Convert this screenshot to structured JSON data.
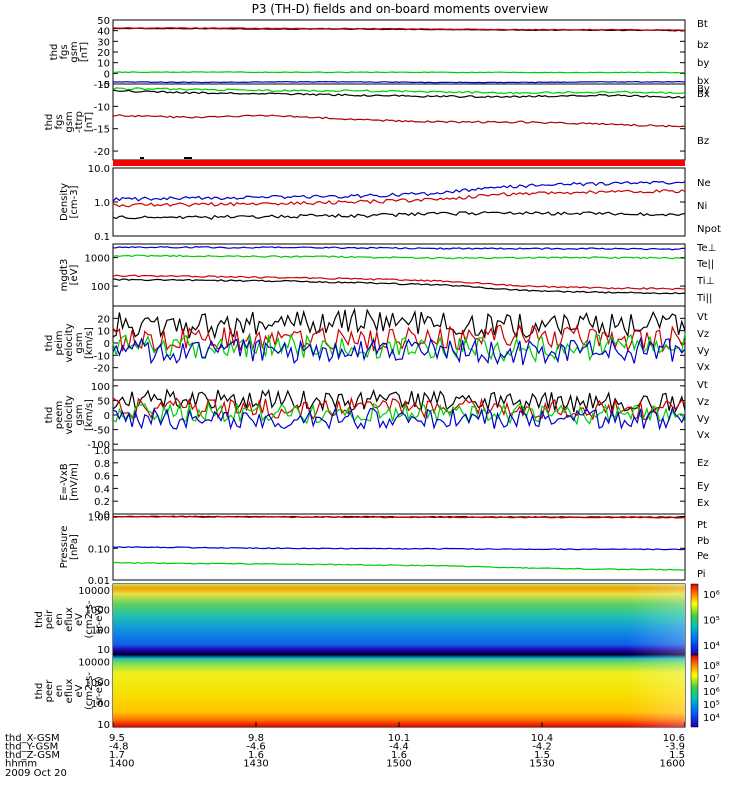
{
  "chart_data": {
    "type": "line",
    "title": "P3 (TH-D) fields and on-board moments overview",
    "panels": [
      {
        "id": "fgs-gsm-top",
        "ylabel": [
          "thd",
          "fgs",
          "gsm",
          "[nT]"
        ],
        "ylim": [
          -10,
          50
        ],
        "yticks": [
          -10,
          0,
          10,
          20,
          30,
          40,
          50
        ],
        "log": false,
        "series": [
          {
            "name": "Bt",
            "color": "#000000",
            "values": [
              42,
              42,
              41.5,
              41.5,
              41,
              40.5,
              40.5,
              40
            ]
          },
          {
            "name": "bz",
            "color": "#cc0000",
            "values": [
              42.5,
              42.5,
              42,
              42,
              41.5,
              41,
              41,
              40.5
            ]
          },
          {
            "name": "by",
            "color": "#00cc00",
            "values": [
              1,
              1.2,
              1,
              1,
              1,
              0.8,
              0.8,
              0.8
            ]
          },
          {
            "name": "bx",
            "color": "#0000cc",
            "values": [
              -8,
              -8.5,
              -8,
              -8,
              -8.5,
              -8.5,
              -8,
              -8
            ]
          }
        ]
      },
      {
        "id": "fgs-gsm-bottom",
        "ylabel": [
          "thd",
          "fgs",
          "gsm",
          "-ttrp",
          "[nT]"
        ],
        "ylim": [
          -22,
          -5
        ],
        "yticks": [
          -20,
          -15,
          -10,
          -5
        ],
        "log": false,
        "series": [
          {
            "name": "By",
            "color": "#00cc00",
            "values": [
              -6,
              -6.2,
              -6.5,
              -6.5,
              -6.8,
              -7,
              -6.8,
              -7
            ]
          },
          {
            "name": "Bx",
            "color": "#000000",
            "values": [
              -6.5,
              -7,
              -7.2,
              -7.5,
              -7.8,
              -7.8,
              -7.5,
              -8
            ]
          },
          {
            "name": "Bz",
            "color": "#aa0000",
            "values": [
              -12,
              -12.5,
              -12,
              -13,
              -13.5,
              -13.5,
              -14,
              -14.5
            ]
          }
        ]
      },
      {
        "id": "density",
        "ylabel": [
          "Density",
          "[cm-3]"
        ],
        "ylim": [
          0.1,
          10
        ],
        "yticks": [
          0.1,
          1.0,
          10.0
        ],
        "yticklabels": [
          "0.1",
          "1.0",
          "10.0"
        ],
        "log": true,
        "series": [
          {
            "name": "Ne",
            "color": "#0000cc",
            "values": [
              1.2,
              1.3,
              1.4,
              1.5,
              1.8,
              3.0,
              3.5,
              3.8
            ]
          },
          {
            "name": "Ni",
            "color": "#cc0000",
            "values": [
              0.8,
              0.85,
              0.9,
              1.0,
              1.2,
              1.8,
              2.0,
              2.1
            ]
          },
          {
            "name": "Npot",
            "color": "#000000",
            "values": [
              0.35,
              0.35,
              0.38,
              0.4,
              0.45,
              0.48,
              0.45,
              0.42
            ]
          }
        ]
      },
      {
        "id": "temperature",
        "ylabel": [
          "mgdt3",
          "[eV]"
        ],
        "ylim": [
          20,
          3000
        ],
        "yticks": [
          100,
          1000
        ],
        "yticklabels": [
          "100",
          "1000"
        ],
        "log": true,
        "series": [
          {
            "name": "Te⊥",
            "color": "#cc0000",
            "values": [
              230,
              220,
              200,
              180,
              150,
              100,
              85,
              80
            ]
          },
          {
            "name": "Te||",
            "color": "#000000",
            "values": [
              170,
              160,
              150,
              130,
              110,
              70,
              60,
              55
            ]
          },
          {
            "name": "Ti⊥",
            "color": "#0000cc",
            "values": [
              2300,
              2300,
              2250,
              2200,
              2100,
              2050,
              2050,
              2000
            ]
          },
          {
            "name": "Ti||",
            "color": "#00cc00",
            "values": [
              1150,
              1150,
              1100,
              1050,
              950,
              1000,
              1000,
              950
            ]
          }
        ]
      },
      {
        "id": "velocity-1",
        "ylabel": [
          "thd",
          "peim",
          "velocity",
          "gsm",
          "[km/s]"
        ],
        "ylim": [
          -30,
          30
        ],
        "yticks": [
          -20,
          -10,
          0,
          10,
          20
        ],
        "log": false,
        "series": [
          {
            "name": "Vt",
            "color": "#000000",
            "values": [
              15,
              14,
              16,
              18,
              15,
              14,
              15,
              15
            ]
          },
          {
            "name": "Vz",
            "color": "#cc0000",
            "values": [
              3,
              3,
              4,
              2,
              3,
              5,
              4,
              3
            ]
          },
          {
            "name": "Vy",
            "color": "#00cc00",
            "values": [
              -2,
              -3,
              -2,
              -4,
              -3,
              -6,
              -3,
              -2
            ]
          },
          {
            "name": "Vx",
            "color": "#0000cc",
            "values": [
              -6,
              -7,
              -6,
              -8,
              -6,
              -8,
              -7,
              -6
            ]
          }
        ]
      },
      {
        "id": "velocity-2",
        "ylabel": [
          "thd",
          "peem",
          "velocity",
          "gsm",
          "[km/s]"
        ],
        "ylim": [
          -120,
          120
        ],
        "yticks": [
          -100,
          -50,
          0,
          50,
          100
        ],
        "log": false,
        "series": [
          {
            "name": "Vt",
            "color": "#000000",
            "values": [
              55,
              55,
              50,
              48,
              50,
              45,
              45,
              45
            ]
          },
          {
            "name": "Vz",
            "color": "#cc0000",
            "values": [
              25,
              25,
              20,
              22,
              20,
              22,
              18,
              18
            ]
          },
          {
            "name": "Vy",
            "color": "#00cc00",
            "values": [
              10,
              8,
              5,
              5,
              6,
              5,
              4,
              4
            ]
          },
          {
            "name": "Vx",
            "color": "#0000cc",
            "values": [
              -10,
              -15,
              -12,
              -12,
              -14,
              -12,
              -12,
              -12
            ]
          }
        ]
      },
      {
        "id": "efield",
        "ylabel": [
          "E=-VxB",
          "[mV/m]"
        ],
        "ylim": [
          0,
          1
        ],
        "yticks": [
          0,
          0.2,
          0.4,
          0.6,
          0.8,
          1.0
        ],
        "yticklabels": [
          "0.0",
          "0.2",
          "0.4",
          "0.6",
          "0.8",
          "1.0"
        ],
        "log": false,
        "series": [
          {
            "name": "Ez",
            "color": "#cc0000",
            "values": []
          },
          {
            "name": "Ey",
            "color": "#00cc00",
            "values": []
          },
          {
            "name": "Ex",
            "color": "#0000cc",
            "values": []
          }
        ]
      },
      {
        "id": "pressure",
        "ylabel": [
          "Pressure",
          "[nPa]"
        ],
        "ylim": [
          0.01,
          1.2
        ],
        "yticks": [
          0.01,
          0.1,
          1.0
        ],
        "yticklabels": [
          "0.01",
          "0.10",
          "1.00"
        ],
        "log": true,
        "series": [
          {
            "name": "Pt",
            "color": "#000000",
            "values": [
              1.0,
              1.0,
              0.98,
              0.98,
              0.97,
              0.96,
              0.96,
              0.95
            ]
          },
          {
            "name": "Pb",
            "color": "#cc0000",
            "values": [
              0.98,
              0.97,
              0.96,
              0.95,
              0.94,
              0.93,
              0.93,
              0.92
            ]
          },
          {
            "name": "Pe",
            "color": "#00cc00",
            "values": [
              0.035,
              0.033,
              0.032,
              0.03,
              0.028,
              0.024,
              0.022,
              0.021
            ]
          },
          {
            "name": "Pi",
            "color": "#0000cc",
            "values": [
              0.11,
              0.105,
              0.1,
              0.098,
              0.096,
              0.094,
              0.093,
              0.092
            ]
          }
        ]
      },
      {
        "id": "peir-spectrogram",
        "type": "heatmap",
        "ylabel": [
          "thd",
          "peir",
          "en",
          "eflux",
          "eV",
          "(cm2-s-",
          "sr-eV)"
        ],
        "ylim": [
          5,
          20000
        ],
        "yticks": [
          10,
          100,
          1000,
          10000
        ],
        "yticklabels": [
          "10",
          "100",
          "1000",
          "10000"
        ],
        "log": true,
        "colorbar": {
          "ticks": [
            "10⁶",
            "10⁵",
            "10⁴"
          ]
        }
      },
      {
        "id": "peer-spectrogram",
        "type": "heatmap",
        "ylabel": [
          "thd",
          "peer",
          "en",
          "eflux",
          "eV",
          "(cm2-s-",
          "sr-eV)"
        ],
        "ylim": [
          7,
          20000
        ],
        "yticks": [
          10,
          100,
          1000,
          10000
        ],
        "yticklabels": [
          "10",
          "100",
          "1000",
          "10000"
        ],
        "log": true,
        "colorbar": {
          "ticks": [
            "10⁸",
            "10⁷",
            "10⁶",
            "10⁵",
            "10⁴"
          ]
        }
      }
    ],
    "x_axis": {
      "rows": [
        {
          "label": "thd_X-GSM",
          "values": [
            "9.5",
            "9.8",
            "10.1",
            "10.4",
            "10.6"
          ]
        },
        {
          "label": "thd_Y-GSM",
          "values": [
            "-4.8",
            "-4.6",
            "-4.4",
            "-4.2",
            "-3.9"
          ]
        },
        {
          "label": "thd_Z-GSM",
          "values": [
            "1.7",
            "1.6",
            "1.6",
            "1.5",
            "1.5"
          ]
        },
        {
          "label": "hhmm",
          "values": [
            "1400",
            "1430",
            "1500",
            "1530",
            "1600"
          ]
        }
      ],
      "date": "2009 Oct 20"
    }
  }
}
